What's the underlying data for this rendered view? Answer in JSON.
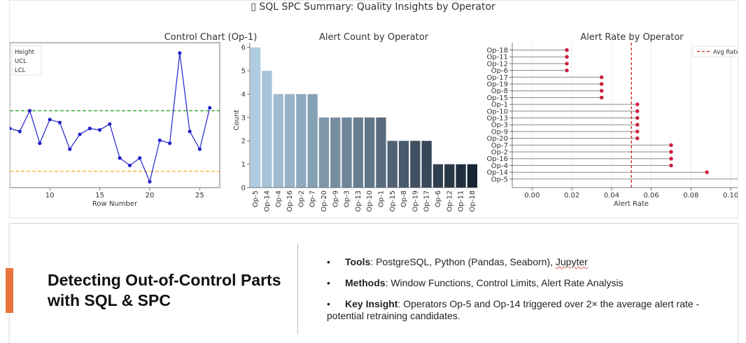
{
  "suptitle": "▯ SQL SPC Summary: Quality Insights by Operator",
  "chart_data": [
    {
      "type": "line",
      "title": "Control Chart (Op-1)",
      "xlabel": "Row Number",
      "ylabel": "",
      "xlim": [
        6,
        27
      ],
      "ylim": [
        1.4,
        6.3
      ],
      "xticks": [
        10,
        15,
        20,
        25
      ],
      "legend": [
        "Height",
        "UCL",
        "LCL"
      ],
      "legend_position": "top-left",
      "series": [
        {
          "name": "Height",
          "x": [
            6,
            7,
            8,
            9,
            10,
            11,
            12,
            13,
            14,
            15,
            16,
            17,
            18,
            19,
            20,
            21,
            22,
            23,
            24,
            25,
            26
          ],
          "y": [
            3.4,
            3.3,
            4.0,
            2.9,
            3.7,
            3.6,
            2.7,
            3.2,
            3.4,
            3.35,
            3.55,
            2.4,
            2.15,
            2.4,
            1.6,
            3.0,
            2.9,
            5.95,
            3.3,
            2.7,
            4.1
          ],
          "color": "#2222cc"
        }
      ],
      "ucl": 4.0,
      "lcl": 1.95,
      "ucl_color": "#33a02c",
      "lcl_color": "#f5a623"
    },
    {
      "type": "bar",
      "title": "Alert Count by Operator",
      "xlabel": "",
      "ylabel": "Count",
      "ylim": [
        0,
        6.2
      ],
      "yticks": [
        0,
        1,
        2,
        3,
        4,
        5,
        6
      ],
      "categories": [
        "Op-5",
        "Op-14",
        "Op-4",
        "Op-16",
        "Op-2",
        "Op-7",
        "Op-20",
        "Op-9",
        "Op-3",
        "Op-13",
        "Op-10",
        "Op-1",
        "Op-15",
        "Op-8",
        "Op-19",
        "Op-17",
        "Op-6",
        "Op-12",
        "Op-11",
        "Op-18"
      ],
      "values": [
        6,
        5,
        4,
        4,
        4,
        4,
        3,
        3,
        3,
        3,
        3,
        3,
        2,
        2,
        2,
        2,
        1,
        1,
        1,
        1
      ]
    },
    {
      "type": "scatter",
      "title": "Alert Rate by Operator",
      "xlabel": "Alert Rate",
      "ylabel": "",
      "xlim": [
        -0.01,
        0.107
      ],
      "xticks": [
        "0.00",
        "0.02",
        "0.04",
        "0.06",
        "0.08",
        "0.10"
      ],
      "categories": [
        "Op-18",
        "Op-11",
        "Op-12",
        "Op-6",
        "Op-17",
        "Op-19",
        "Op-8",
        "Op-15",
        "Op-1",
        "Op-10",
        "Op-13",
        "Op-3",
        "Op-9",
        "Op-20",
        "Op-7",
        "Op-2",
        "Op-16",
        "Op-4",
        "Op-14",
        "Op-5"
      ],
      "values": [
        0.0175,
        0.0175,
        0.0175,
        0.0175,
        0.035,
        0.035,
        0.035,
        0.035,
        0.053,
        0.053,
        0.053,
        0.053,
        0.053,
        0.053,
        0.07,
        0.07,
        0.07,
        0.07,
        0.088,
        0.105
      ],
      "avg_rate": 0.05,
      "avg_label": "Avg Rate",
      "point_color": "#cc1f3c",
      "avg_color": "#cc1f1f",
      "legend_position": "top-right"
    }
  ],
  "card": {
    "headline": "Detecting Out-of-Control Parts with SQL & SPC",
    "bullets": [
      {
        "label": "Tools",
        "sep": ": ",
        "text_a": "PostgreSQL, Python (Pandas, Seaborn), ",
        "text_b": "Jupyter"
      },
      {
        "label": "Methods",
        "sep": ": ",
        "text": "Window Functions, Control Limits, Alert Rate Analysis"
      },
      {
        "label": "Key Insight",
        "sep": ": ",
        "text": "Operators Op-5 and Op-14 triggered over 2× the average alert rate - potential retraining candidates."
      }
    ],
    "bullet_char": "•"
  }
}
